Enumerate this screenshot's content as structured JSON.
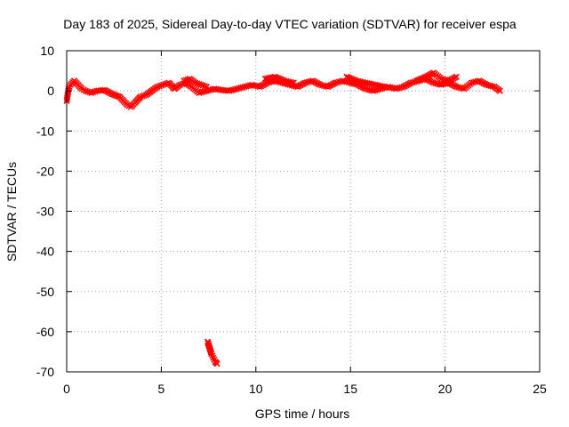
{
  "chart_data": {
    "type": "scatter",
    "title": "Day 183 of 2025, Sidereal Day-to-day VTEC variation (SDTVAR) for receiver espa",
    "xlabel": "GPS time / hours",
    "ylabel": "SDTVAR / TECUs",
    "xlim": [
      0,
      25
    ],
    "ylim": [
      -70,
      10
    ],
    "xticks": [
      0,
      5,
      10,
      15,
      20,
      25
    ],
    "yticks": [
      10,
      0,
      -10,
      -20,
      -30,
      -40,
      -50,
      -60,
      -70
    ],
    "grid": true,
    "series": [
      {
        "name": "SDTVAR",
        "color": "#ff0000",
        "segments": [
          {
            "x": [
              0.0,
              0.1,
              0.2,
              0.4,
              0.6,
              0.8,
              1.0,
              1.3,
              1.6,
              2.0,
              2.4,
              2.8,
              3.0,
              3.2,
              3.4,
              3.6,
              3.9,
              4.2,
              4.5,
              4.8,
              5.1,
              5.4,
              5.7,
              6.0,
              6.3,
              6.6,
              7.0,
              7.4,
              7.8,
              8.2,
              8.6,
              9.0,
              9.4,
              9.8,
              10.2,
              10.6,
              11.0,
              11.4,
              11.8,
              12.2,
              12.6,
              13.0,
              13.4,
              13.8,
              14.2,
              14.6,
              15.0,
              15.4,
              15.8,
              16.2,
              16.6,
              17.0,
              17.4,
              17.8,
              18.2,
              18.6,
              19.0,
              19.4,
              19.8,
              20.2,
              20.6,
              21.0,
              21.4,
              21.8,
              22.2,
              22.6,
              22.9
            ],
            "y": [
              -2.5,
              0.5,
              1.5,
              2.5,
              1.5,
              0.5,
              0.0,
              -0.5,
              0.0,
              0.2,
              -0.8,
              -1.5,
              -2.5,
              -3.5,
              -4.0,
              -3.0,
              -1.5,
              -1.0,
              0.0,
              1.0,
              1.5,
              2.0,
              0.5,
              1.5,
              2.0,
              1.0,
              -0.5,
              0.0,
              0.5,
              0.2,
              0.0,
              0.5,
              1.0,
              1.5,
              1.0,
              2.0,
              2.5,
              2.0,
              1.5,
              1.0,
              2.0,
              2.5,
              1.5,
              1.0,
              2.0,
              2.5,
              2.0,
              1.5,
              0.5,
              0.0,
              0.5,
              1.0,
              0.5,
              1.0,
              2.0,
              2.5,
              3.0,
              2.0,
              1.5,
              2.0,
              1.0,
              0.5,
              2.0,
              2.5,
              1.5,
              1.0,
              0.0
            ]
          },
          {
            "x": [
              6.2,
              6.5,
              6.8,
              7.1,
              7.4
            ],
            "y": [
              2.5,
              3.0,
              2.0,
              1.5,
              1.0
            ]
          },
          {
            "x": [
              10.5,
              11.0,
              11.5,
              12.0
            ],
            "y": [
              3.0,
              3.5,
              2.5,
              2.0
            ]
          },
          {
            "x": [
              14.8,
              15.3,
              15.8,
              16.3,
              16.8
            ],
            "y": [
              3.5,
              2.5,
              2.0,
              1.5,
              1.0
            ]
          },
          {
            "x": [
              18.5,
              19.0,
              19.4,
              19.8,
              20.2,
              20.6
            ],
            "y": [
              2.5,
              3.5,
              4.5,
              3.0,
              2.5,
              3.5
            ]
          },
          {
            "x": [
              7.45,
              7.55,
              7.65,
              7.75,
              7.85,
              7.95
            ],
            "y": [
              -62.5,
              -64.0,
              -65.5,
              -66.5,
              -67.5,
              -68.0
            ]
          }
        ]
      }
    ]
  }
}
